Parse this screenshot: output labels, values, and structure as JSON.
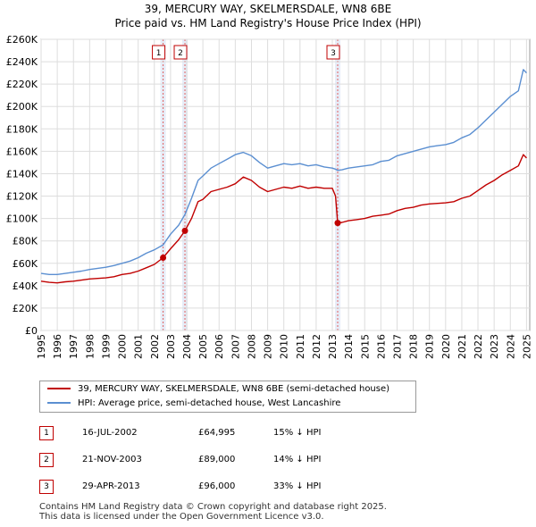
{
  "title": "39, MERCURY WAY, SKELMERSDALE, WN8 6BE",
  "subtitle": "Price paid vs. HM Land Registry's House Price Index (HPI)",
  "colors": {
    "property": "#c00000",
    "hpi": "#5b8fd1",
    "grid": "#dddddd",
    "marker_band": "#dde6f5"
  },
  "chart_data": {
    "type": "line",
    "xlim": [
      1995,
      2025.2
    ],
    "ylim": [
      0,
      260000
    ],
    "x_ticks": [
      1995,
      1996,
      1997,
      1998,
      1999,
      2000,
      2001,
      2002,
      2003,
      2004,
      2005,
      2006,
      2007,
      2008,
      2009,
      2010,
      2011,
      2012,
      2013,
      2014,
      2015,
      2016,
      2017,
      2018,
      2019,
      2020,
      2021,
      2022,
      2023,
      2024,
      2025
    ],
    "y_ticks": [
      {
        "value": 0,
        "label": "£0"
      },
      {
        "value": 20000,
        "label": "£20K"
      },
      {
        "value": 40000,
        "label": "£40K"
      },
      {
        "value": 60000,
        "label": "£60K"
      },
      {
        "value": 80000,
        "label": "£80K"
      },
      {
        "value": 100000,
        "label": "£100K"
      },
      {
        "value": 120000,
        "label": "£120K"
      },
      {
        "value": 140000,
        "label": "£140K"
      },
      {
        "value": 160000,
        "label": "£160K"
      },
      {
        "value": 180000,
        "label": "£180K"
      },
      {
        "value": 200000,
        "label": "£200K"
      },
      {
        "value": 220000,
        "label": "£220K"
      },
      {
        "value": 240000,
        "label": "£240K"
      },
      {
        "value": 260000,
        "label": "£260K"
      }
    ],
    "series": [
      {
        "name": "39, MERCURY WAY, SKELMERSDALE, WN8 6BE (semi-detached house)",
        "color": "#c00000",
        "x": [
          1995.0,
          1995.5,
          1996.0,
          1996.5,
          1997.0,
          1997.5,
          1998.0,
          1998.5,
          1999.0,
          1999.5,
          2000.0,
          2000.5,
          2001.0,
          2001.5,
          2002.0,
          2002.54,
          2003.0,
          2003.5,
          2003.89,
          2004.3,
          2004.7,
          2005.0,
          2005.5,
          2006.0,
          2006.5,
          2007.0,
          2007.5,
          2008.0,
          2008.5,
          2009.0,
          2009.5,
          2010.0,
          2010.5,
          2011.0,
          2011.5,
          2012.0,
          2012.5,
          2013.0,
          2013.2,
          2013.33,
          2013.6,
          2014.0,
          2014.5,
          2015.0,
          2015.5,
          2016.0,
          2016.5,
          2017.0,
          2017.5,
          2018.0,
          2018.5,
          2019.0,
          2019.5,
          2020.0,
          2020.5,
          2021.0,
          2021.5,
          2022.0,
          2022.5,
          2023.0,
          2023.5,
          2024.0,
          2024.5,
          2024.8,
          2025.0
        ],
        "values": [
          44000,
          43000,
          42500,
          43500,
          44000,
          45000,
          46000,
          46500,
          47000,
          48000,
          50000,
          51000,
          53000,
          56000,
          59000,
          64995,
          73000,
          81000,
          89000,
          100000,
          115000,
          117000,
          124000,
          126000,
          128000,
          131000,
          137000,
          134000,
          128000,
          124000,
          126000,
          128000,
          127000,
          129000,
          127000,
          128000,
          127000,
          127000,
          120000,
          96000,
          96500,
          98000,
          99000,
          100000,
          102000,
          103000,
          104000,
          107000,
          109000,
          110000,
          112000,
          113000,
          113500,
          114000,
          115000,
          118000,
          120000,
          125000,
          130000,
          134000,
          139000,
          143000,
          147000,
          157000,
          154000
        ]
      },
      {
        "name": "HPI: Average price, semi-detached house, West Lancashire",
        "color": "#5b8fd1",
        "x": [
          1995.0,
          1995.5,
          1996.0,
          1996.5,
          1997.0,
          1997.5,
          1998.0,
          1998.5,
          1999.0,
          1999.5,
          2000.0,
          2000.5,
          2001.0,
          2001.5,
          2002.0,
          2002.54,
          2003.0,
          2003.5,
          2003.89,
          2004.3,
          2004.7,
          2005.0,
          2005.5,
          2006.0,
          2006.5,
          2007.0,
          2007.5,
          2008.0,
          2008.5,
          2009.0,
          2009.5,
          2010.0,
          2010.5,
          2011.0,
          2011.5,
          2012.0,
          2012.5,
          2013.0,
          2013.2,
          2013.33,
          2013.6,
          2014.0,
          2014.5,
          2015.0,
          2015.5,
          2016.0,
          2016.5,
          2017.0,
          2017.5,
          2018.0,
          2018.5,
          2019.0,
          2019.5,
          2020.0,
          2020.5,
          2021.0,
          2021.5,
          2022.0,
          2022.5,
          2023.0,
          2023.5,
          2024.0,
          2024.5,
          2024.8,
          2025.0
        ],
        "values": [
          51000,
          50000,
          50000,
          51000,
          52000,
          53000,
          54500,
          55500,
          56500,
          58000,
          60000,
          62000,
          65000,
          69000,
          72000,
          76500,
          86000,
          94000,
          103500,
          118000,
          134000,
          138000,
          145000,
          149000,
          153000,
          157000,
          159000,
          156000,
          150000,
          145000,
          147000,
          149000,
          148000,
          149000,
          147000,
          148000,
          146000,
          145000,
          144000,
          143000,
          143500,
          145000,
          146000,
          147000,
          148000,
          151000,
          152000,
          156000,
          158000,
          160000,
          162000,
          164000,
          165000,
          166000,
          168000,
          172000,
          175000,
          181000,
          188000,
          195000,
          202000,
          209000,
          214000,
          233000,
          230000
        ]
      }
    ],
    "transactions": [
      {
        "label": "1",
        "x": 2002.54,
        "date": "16-JUL-2002",
        "price_value": 64995,
        "price": "£64,995",
        "hpi_delta": "15% ↓ HPI"
      },
      {
        "label": "2",
        "x": 2003.89,
        "date": "21-NOV-2003",
        "price_value": 89000,
        "price": "£89,000",
        "hpi_delta": "14% ↓ HPI"
      },
      {
        "label": "3",
        "x": 2013.33,
        "date": "29-APR-2013",
        "price_value": 96000,
        "price": "£96,000",
        "hpi_delta": "33% ↓ HPI"
      }
    ]
  },
  "legend": {
    "property": "39, MERCURY WAY, SKELMERSDALE, WN8 6BE (semi-detached house)",
    "hpi": "HPI: Average price, semi-detached house, West Lancashire"
  },
  "footer": {
    "line1": "Contains HM Land Registry data © Crown copyright and database right 2025.",
    "line2": "This data is licensed under the Open Government Licence v3.0."
  }
}
